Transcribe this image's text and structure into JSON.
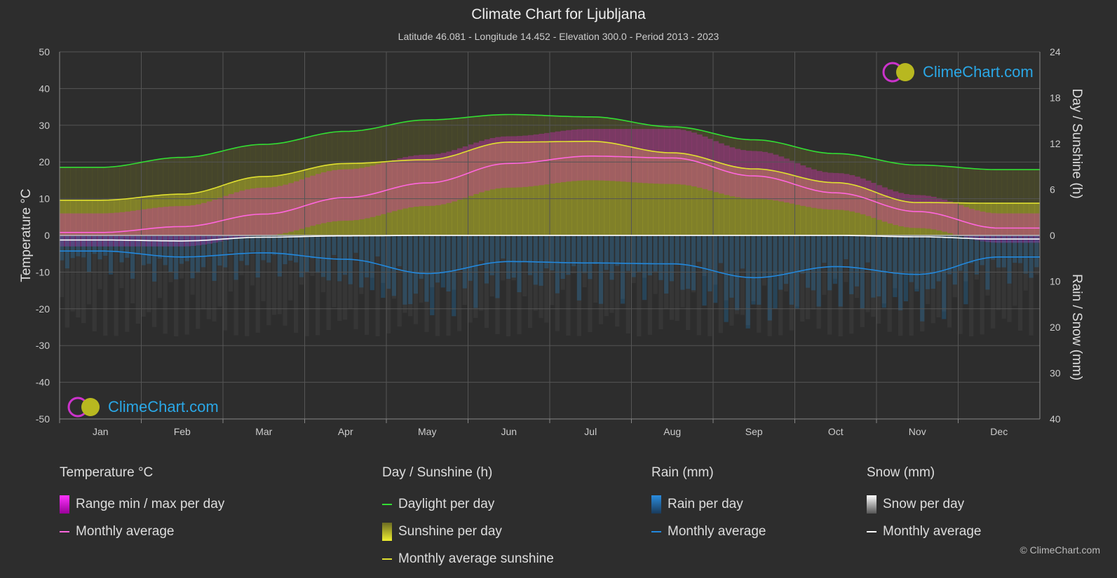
{
  "title": "Climate Chart for Ljubljana",
  "subtitle": "Latitude 46.081 - Longitude 14.452 - Elevation 300.0 - Period 2013 - 2023",
  "brand": "ClimeChart.com",
  "copyright": "© ClimeChart.com",
  "colors": {
    "background": "#2d2d2d",
    "daylight": "#33dd33",
    "sunshine_avg": "#e0e030",
    "temp_avg": "#ff66dd",
    "rain_avg": "#2288dd",
    "snow_avg": "#ffffff",
    "temp_range": "#dd22cc",
    "sunshine_fill": "#c8c828",
    "rain_fill": "#1e6fa8",
    "snow_fill": "#aaaaaa"
  },
  "legend": {
    "temperature": {
      "title": "Temperature °C",
      "range": "Range min / max per day",
      "avg": "Monthly average"
    },
    "sun": {
      "title": "Day / Sunshine (h)",
      "daylight": "Daylight per day",
      "sunshine": "Sunshine per day",
      "avg": "Monthly average sunshine"
    },
    "rain": {
      "title": "Rain (mm)",
      "per_day": "Rain per day",
      "avg": "Monthly average"
    },
    "snow": {
      "title": "Snow (mm)",
      "per_day": "Snow per day",
      "avg": "Monthly average"
    }
  },
  "chart_data": {
    "type": "line",
    "categories": [
      "Jan",
      "Feb",
      "Mar",
      "Apr",
      "May",
      "Jun",
      "Jul",
      "Aug",
      "Sep",
      "Oct",
      "Nov",
      "Dec"
    ],
    "y_left": {
      "label": "Temperature °C",
      "range": [
        -50,
        50
      ],
      "ticks": [
        50,
        40,
        30,
        20,
        10,
        0,
        -10,
        -20,
        -30,
        -40,
        -50
      ]
    },
    "y_right_top": {
      "label": "Day / Sunshine (h)",
      "range": [
        0,
        24
      ],
      "ticks": [
        24,
        18,
        12,
        6,
        0
      ]
    },
    "y_right_bottom": {
      "label": "Rain / Snow (mm)",
      "range": [
        0,
        40
      ],
      "ticks": [
        10,
        20,
        30,
        40
      ]
    },
    "series": [
      {
        "name": "Daylight per day",
        "unit": "h",
        "values": [
          8.9,
          10.2,
          11.9,
          13.6,
          15.1,
          15.8,
          15.5,
          14.2,
          12.5,
          10.7,
          9.2,
          8.6
        ]
      },
      {
        "name": "Monthly average sunshine",
        "unit": "h",
        "values": [
          4.6,
          5.4,
          7.7,
          9.4,
          9.9,
          12.2,
          12.3,
          10.8,
          8.7,
          6.9,
          4.3,
          4.2
        ]
      },
      {
        "name": "Temperature monthly average",
        "unit": "°C",
        "values": [
          0.8,
          2.4,
          5.8,
          10.3,
          14.3,
          19.6,
          21.6,
          21.1,
          16.2,
          11.6,
          6.5,
          2.0
        ]
      },
      {
        "name": "Temperature max per day",
        "unit": "°C",
        "values": [
          6,
          8,
          13,
          18,
          22,
          27,
          29,
          29,
          23,
          17,
          11,
          6
        ]
      },
      {
        "name": "Temperature min per day",
        "unit": "°C",
        "values": [
          -3,
          -3,
          0,
          4,
          8,
          13,
          15,
          14,
          10,
          7,
          2,
          -2
        ]
      },
      {
        "name": "Rain monthly average",
        "unit": "mm",
        "values": [
          3.4,
          4.7,
          3.8,
          5.2,
          8.3,
          5.7,
          6.0,
          6.2,
          9.2,
          6.8,
          8.5,
          4.7
        ]
      },
      {
        "name": "Snow monthly average",
        "unit": "mm",
        "values": [
          1.0,
          1.2,
          0.4,
          0.1,
          0,
          0,
          0,
          0,
          0,
          0,
          0.3,
          0.8
        ]
      }
    ],
    "grid": true
  }
}
